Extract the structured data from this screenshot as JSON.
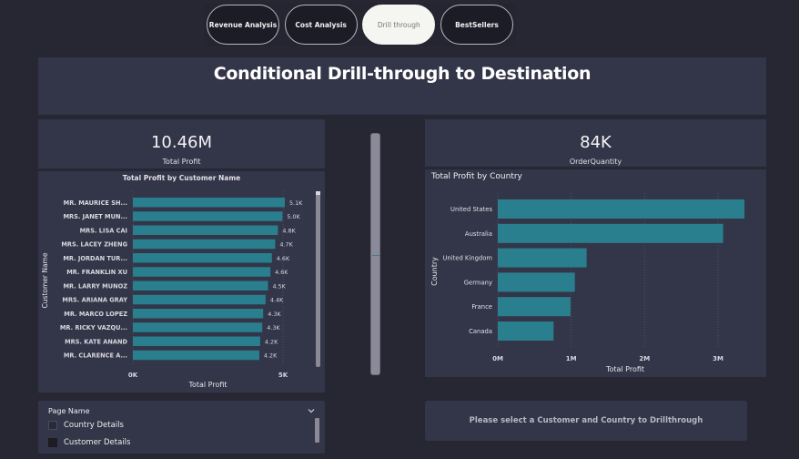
{
  "nav": {
    "buttons": [
      {
        "label": "Revenue Analysis",
        "active": false
      },
      {
        "label": "Cost Analysis",
        "active": false
      },
      {
        "label": "Drill through",
        "active": true
      },
      {
        "label": "BestSellers",
        "active": false
      }
    ]
  },
  "title": "Conditional Drill-through to Destination",
  "kpis": {
    "total_profit": {
      "value": "10.46M",
      "label": "Total Profit"
    },
    "order_quantity": {
      "value": "84K",
      "label": "OrderQuantity"
    }
  },
  "colors": {
    "bar": "#2a7f8e",
    "background": "#262733",
    "panel": "#333548"
  },
  "slicer": {
    "title": "Page Name",
    "options": [
      {
        "label": "Country Details",
        "checked": false
      },
      {
        "label": "Customer Details",
        "checked": true
      }
    ]
  },
  "drill_button": {
    "label": "Please select a Customer and Country to Drillthrough"
  },
  "chart_data": [
    {
      "type": "bar",
      "orientation": "horizontal",
      "title": "Total Profit by Customer Name",
      "xlabel": "Total Profit",
      "ylabel": "Customer Name",
      "xlim": [
        0,
        5000
      ],
      "xticks": [
        "0K",
        "5K"
      ],
      "grid": true,
      "categories": [
        "MR. MAURICE SH...",
        "MRS. JANET MUN...",
        "MRS. LISA CAI",
        "MRS. LACEY ZHENG",
        "MR. JORDAN TUR...",
        "MR. FRANKLIN XU",
        "MR. LARRY MUNOZ",
        "MRS. ARIANA GRAY",
        "MR. MARCO LOPEZ",
        "MR. RICKY VAZQU...",
        "MRS. KATE ANAND",
        "MR. CLARENCE A..."
      ],
      "values": [
        5060,
        4980,
        4830,
        4740,
        4630,
        4580,
        4500,
        4420,
        4340,
        4310,
        4240,
        4210
      ],
      "data_labels": [
        "5.1K",
        "5.0K",
        "4.8K",
        "4.7K",
        "4.6K",
        "4.6K",
        "4.5K",
        "4.4K",
        "4.3K",
        "4.3K",
        "4.2K",
        "4.2K"
      ]
    },
    {
      "type": "bar",
      "orientation": "horizontal",
      "title": "Total Profit by Country",
      "xlabel": "Total Profit",
      "ylabel": "Country",
      "xlim": [
        0,
        3000000
      ],
      "xticks": [
        "0M",
        "1M",
        "2M",
        "3M"
      ],
      "grid": true,
      "categories": [
        "United States",
        "Australia",
        "United Kingdom",
        "Germany",
        "France",
        "Canada"
      ],
      "values": [
        3360000,
        3070000,
        1210000,
        1050000,
        990000,
        760000
      ]
    }
  ]
}
